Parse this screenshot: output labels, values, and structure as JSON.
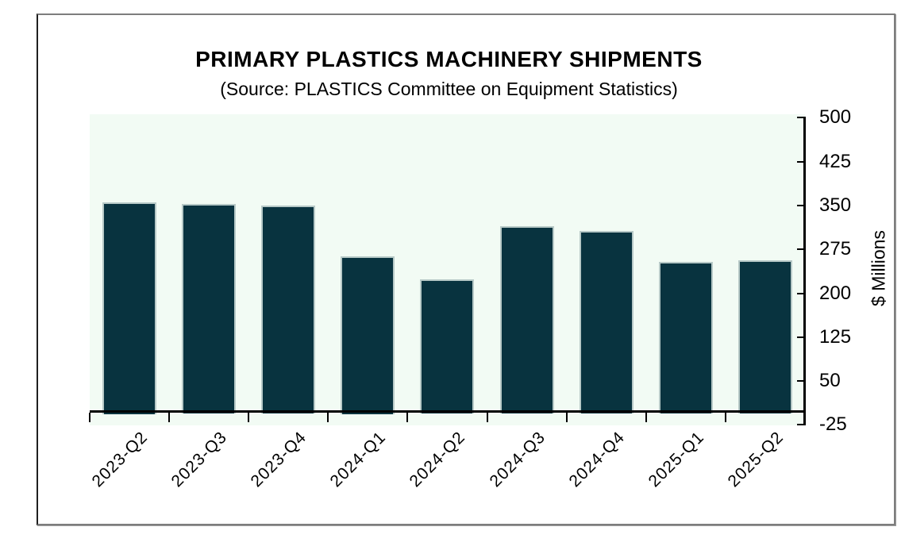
{
  "chart": {
    "title": "PRIMARY PLASTICS MACHINERY SHIPMENTS",
    "subtitle": "(Source: PLASTICS Committee on Equipment Statistics)",
    "y_axis_label": "$ Millions"
  },
  "chart_data": {
    "type": "bar",
    "title": "PRIMARY PLASTICS MACHINERY SHIPMENTS",
    "subtitle": "(Source: PLASTICS Committee on Equipment Statistics)",
    "categories": [
      "2023-Q2",
      "2023-Q3",
      "2023-Q4",
      "2024-Q1",
      "2024-Q2",
      "2024-Q3",
      "2024-Q4",
      "2025-Q1",
      "2025-Q2"
    ],
    "values": [
      356,
      352,
      350,
      263,
      224,
      315,
      306,
      253,
      256
    ],
    "xlabel": "",
    "ylabel": "$ Millions",
    "ylim": [
      -25,
      500
    ],
    "yticks": [
      500,
      425,
      350,
      275,
      200,
      125,
      50,
      -25
    ],
    "bar_baseline_value": 0,
    "grid": false,
    "legend": "none",
    "colors": {
      "bar_fill": "#08333f",
      "bar_edge": "#b7c9c7",
      "plot_background": "#f2fbf4",
      "axis": "#000000",
      "text": "#000000",
      "frame_border": "#7d7d7d"
    }
  }
}
